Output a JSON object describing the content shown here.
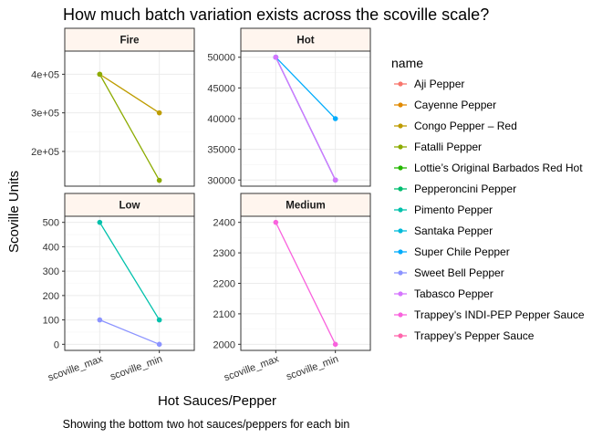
{
  "chart_data": {
    "type": "line",
    "title": "How much batch variation exists across the scoville scale?",
    "caption": "Showing the bottom two hot sauces/peppers for each bin",
    "xlabel": "Hot Sauces/Pepper",
    "ylabel": "Scoville Units",
    "x_categories": [
      "scoville_max",
      "scoville_min"
    ],
    "legend": {
      "title": "name",
      "placement": "right",
      "entries": [
        {
          "name": "Aji Pepper",
          "color": "#F8766D"
        },
        {
          "name": "Cayenne Pepper",
          "color": "#E18A00"
        },
        {
          "name": "Congo Pepper – Red",
          "color": "#BE9C00"
        },
        {
          "name": "Fatalli Pepper",
          "color": "#8CAB00"
        },
        {
          "name": "Lottie’s Original Barbados Red Hot",
          "color": "#24B700"
        },
        {
          "name": "Pepperoncini Pepper",
          "color": "#00BE70"
        },
        {
          "name": "Pimento Pepper",
          "color": "#00C1AB"
        },
        {
          "name": "Santaka Pepper",
          "color": "#00BBDA"
        },
        {
          "name": "Super Chile Pepper",
          "color": "#00ACFC"
        },
        {
          "name": "Sweet Bell Pepper",
          "color": "#8B93FF"
        },
        {
          "name": "Tabasco Pepper",
          "color": "#D575FE"
        },
        {
          "name": "Trappey’s INDI-PEP Pepper Sauce",
          "color": "#F962DD"
        },
        {
          "name": "Trappey’s Pepper Sauce",
          "color": "#FF65AC"
        }
      ]
    },
    "facets": [
      {
        "label": "Fire",
        "ylim": [
          110000,
          460000
        ],
        "yticks": [
          200000,
          300000,
          400000
        ],
        "ytick_labels": [
          "2e+05",
          "3e+05",
          "4e+05"
        ],
        "series": [
          {
            "name": "Congo Pepper – Red",
            "values": [
              400000,
              300000
            ]
          },
          {
            "name": "Fatalli Pepper",
            "values": [
              400000,
              125000
            ]
          }
        ]
      },
      {
        "label": "Hot",
        "ylim": [
          29000,
          51000
        ],
        "yticks": [
          30000,
          35000,
          40000,
          45000,
          50000
        ],
        "ytick_labels": [
          "30000",
          "35000",
          "40000",
          "45000",
          "50000"
        ],
        "series": [
          {
            "name": "Super Chile Pepper",
            "values": [
              50000,
              40000
            ]
          },
          {
            "name": "Santaka Pepper",
            "values": [
              50000,
              30000
            ]
          },
          {
            "name": "Sweet Bell Pepper",
            "values": [
              50000,
              30000
            ]
          },
          {
            "name": "Tabasco Pepper",
            "values": [
              50000,
              30000
            ]
          }
        ]
      },
      {
        "label": "Low",
        "ylim": [
          -25,
          525
        ],
        "yticks": [
          0,
          100,
          200,
          300,
          400,
          500
        ],
        "ytick_labels": [
          "0",
          "100",
          "200",
          "300",
          "400",
          "500"
        ],
        "series": [
          {
            "name": "Pimento Pepper",
            "values": [
              500,
              100
            ]
          },
          {
            "name": "Sweet Bell Pepper",
            "values": [
              100,
              0
            ]
          }
        ]
      },
      {
        "label": "Medium",
        "ylim": [
          1980,
          2420
        ],
        "yticks": [
          2000,
          2100,
          2200,
          2300,
          2400
        ],
        "ytick_labels": [
          "2000",
          "2100",
          "2200",
          "2300",
          "2400"
        ],
        "series": [
          {
            "name": "Trappey’s INDI-PEP Pepper Sauce",
            "values": [
              2400,
              2000
            ]
          }
        ]
      }
    ]
  }
}
